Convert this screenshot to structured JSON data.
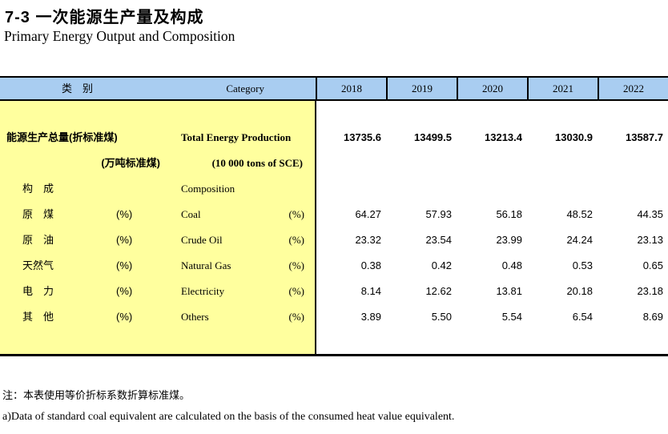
{
  "page": {
    "title_cn": "7-3  一次能源生产量及构成",
    "title_en": "Primary Energy Output and Composition"
  },
  "colors": {
    "header_bg": "#A9CDF1",
    "stub_bg": "#FFFF9E",
    "border": "#000000",
    "text": "#000000"
  },
  "table": {
    "header": {
      "stub_cn": "类　别",
      "stub_en": "Category",
      "years": [
        "2018",
        "2019",
        "2020",
        "2021",
        "2022"
      ]
    },
    "lines": [
      {
        "type": "main-bold",
        "cn": "能源生产总量(折标准煤)",
        "en": "Total Energy Production",
        "values": [
          "13735.6",
          "13499.5",
          "13213.4",
          "13030.9",
          "13587.7"
        ]
      },
      {
        "type": "unit",
        "cn": "(万吨标准煤)",
        "en": "(10 000 tons of SCE)"
      },
      {
        "type": "group",
        "cn": "构　成",
        "en": "Composition"
      },
      {
        "type": "item",
        "cn": "原　煤",
        "cn_unit": "(%)",
        "en": "Coal",
        "en_unit": "(%)",
        "values": [
          "64.27",
          "57.93",
          "56.18",
          "48.52",
          "44.35"
        ]
      },
      {
        "type": "item",
        "cn": "原　油",
        "cn_unit": "(%)",
        "en": "Crude Oil",
        "en_unit": "(%)",
        "values": [
          "23.32",
          "23.54",
          "23.99",
          "24.24",
          "23.13"
        ]
      },
      {
        "type": "item",
        "cn": "天然气",
        "cn_unit": "(%)",
        "en": "Natural Gas",
        "en_unit": "(%)",
        "values": [
          "0.38",
          "0.42",
          "0.48",
          "0.53",
          "0.65"
        ]
      },
      {
        "type": "item",
        "cn": "电　力",
        "cn_unit": "(%)",
        "en": "Electricity",
        "en_unit": "(%)",
        "values": [
          "8.14",
          "12.62",
          "13.81",
          "20.18",
          "23.18"
        ]
      },
      {
        "type": "item",
        "cn": "其　他",
        "cn_unit": "(%)",
        "en": "Others",
        "en_unit": "(%)",
        "values": [
          "3.89",
          "5.50",
          "5.54",
          "6.54",
          "8.69"
        ]
      }
    ]
  },
  "notes": {
    "cn": "注：本表使用等价折标系数折算标准煤。",
    "en": "a)Data of standard coal equivalent are calculated on the basis of the consumed heat value equivalent."
  }
}
